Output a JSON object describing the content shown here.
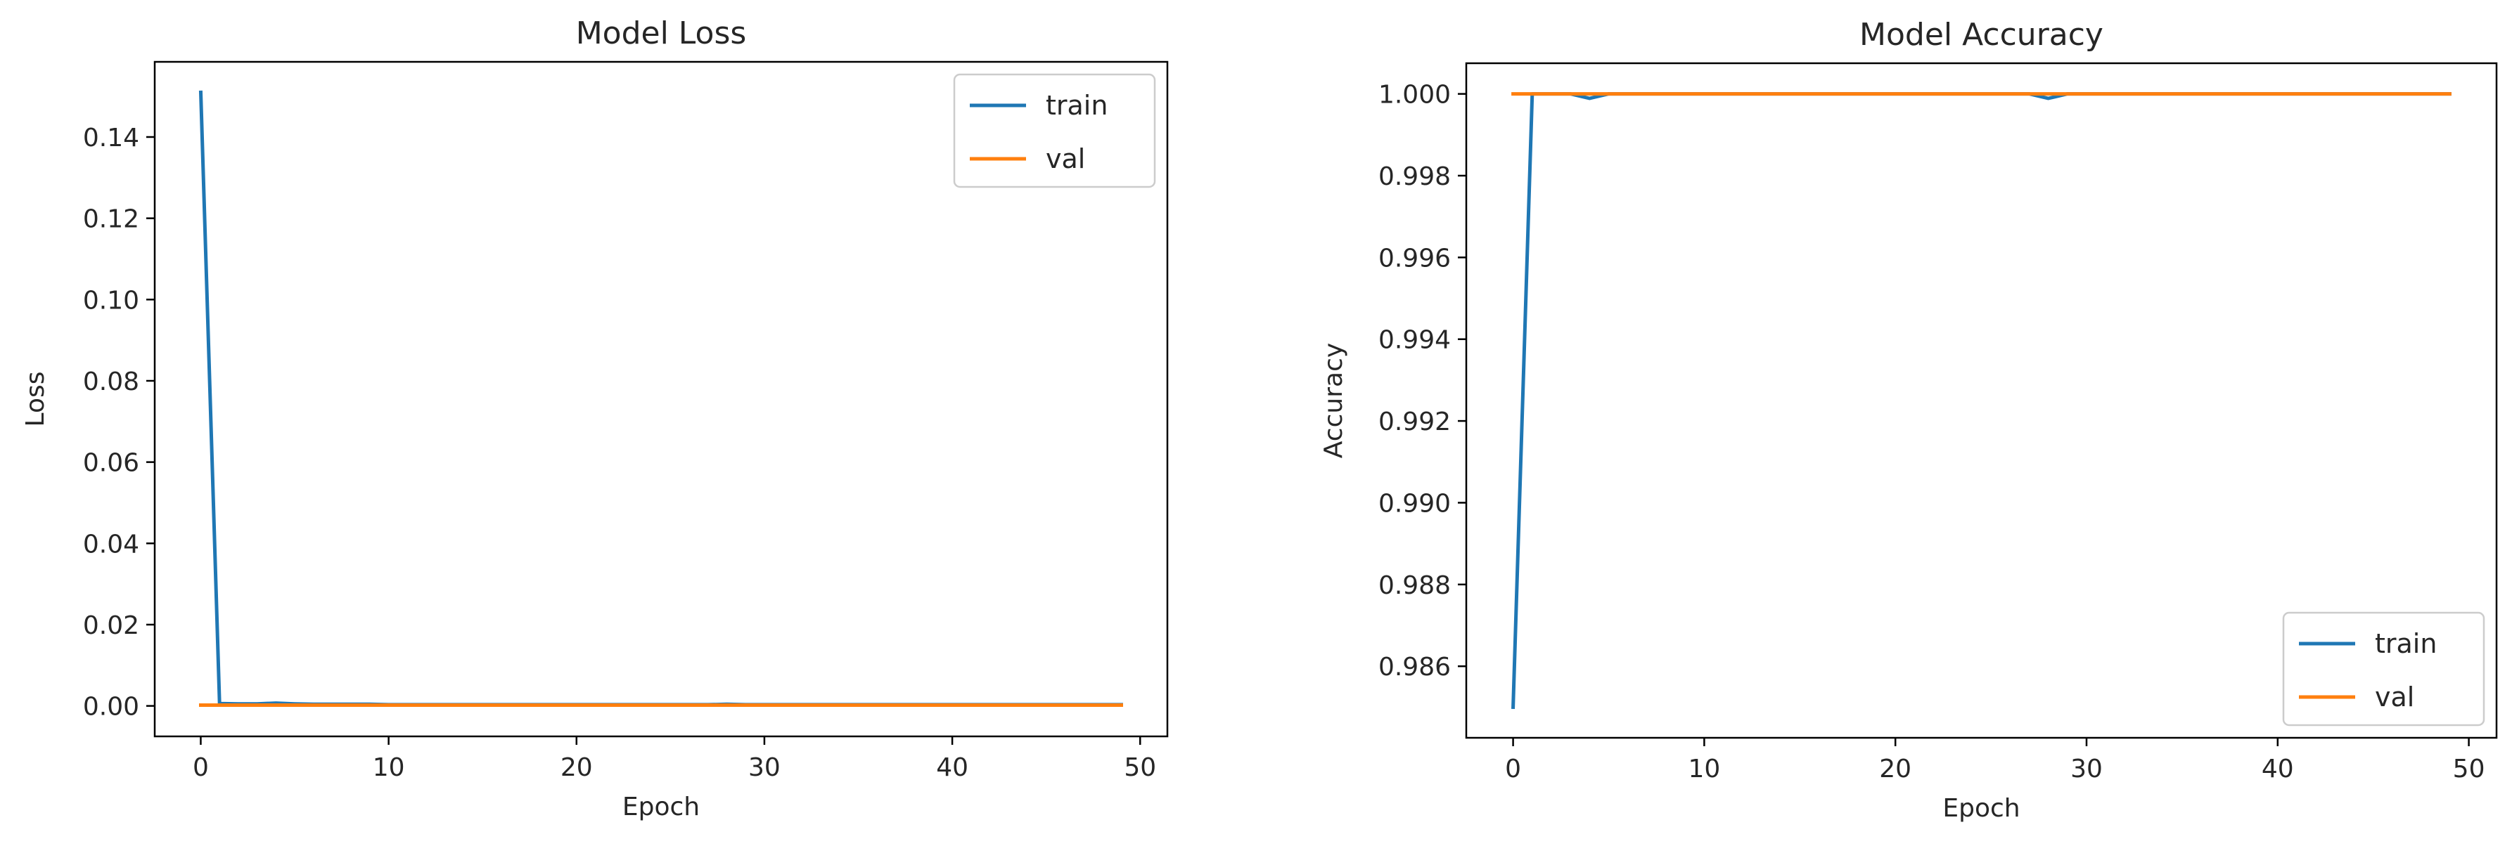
{
  "chart_data": [
    {
      "type": "line",
      "title": "Model Loss",
      "xlabel": "Epoch",
      "ylabel": "Loss",
      "xlim": [
        -2.45,
        51.45
      ],
      "ylim": [
        -0.0075,
        0.1585
      ],
      "xticks": [
        0,
        10,
        20,
        30,
        40,
        50
      ],
      "yticks": [
        0.0,
        0.02,
        0.04,
        0.06,
        0.08,
        0.1,
        0.12,
        0.14
      ],
      "ytick_labels": [
        "0.00",
        "0.02",
        "0.04",
        "0.06",
        "0.08",
        "0.10",
        "0.12",
        "0.14"
      ],
      "legend_position": "upper right",
      "series": [
        {
          "name": "train",
          "color": "#1f77b4",
          "x": [
            0,
            1,
            2,
            3,
            4,
            5,
            6,
            7,
            8,
            9,
            10,
            11,
            12,
            13,
            14,
            15,
            16,
            17,
            18,
            19,
            20,
            21,
            22,
            23,
            24,
            25,
            26,
            27,
            28,
            29,
            30,
            31,
            32,
            33,
            34,
            35,
            36,
            37,
            38,
            39,
            40,
            41,
            42,
            43,
            44,
            45,
            46,
            47,
            48,
            49
          ],
          "values": [
            0.151,
            0.0006,
            0.0005,
            0.0005,
            0.0007,
            0.0005,
            0.0004,
            0.0004,
            0.0004,
            0.0004,
            0.0003,
            0.0003,
            0.0003,
            0.0003,
            0.0003,
            0.0003,
            0.0003,
            0.0003,
            0.0003,
            0.0003,
            0.0003,
            0.0003,
            0.0003,
            0.0003,
            0.0003,
            0.0003,
            0.0003,
            0.0003,
            0.0004,
            0.0003,
            0.0003,
            0.0003,
            0.0003,
            0.0003,
            0.0003,
            0.0003,
            0.0003,
            0.0003,
            0.0003,
            0.0003,
            0.0003,
            0.0003,
            0.0003,
            0.0003,
            0.0003,
            0.0003,
            0.0003,
            0.0003,
            0.0003,
            0.0003
          ]
        },
        {
          "name": "val",
          "color": "#ff7f0e",
          "x": [
            0,
            1,
            2,
            3,
            4,
            5,
            6,
            7,
            8,
            9,
            10,
            11,
            12,
            13,
            14,
            15,
            16,
            17,
            18,
            19,
            20,
            21,
            22,
            23,
            24,
            25,
            26,
            27,
            28,
            29,
            30,
            31,
            32,
            33,
            34,
            35,
            36,
            37,
            38,
            39,
            40,
            41,
            42,
            43,
            44,
            45,
            46,
            47,
            48,
            49
          ],
          "values": [
            0.0002,
            0.0002,
            0.0002,
            0.0002,
            0.0002,
            0.0002,
            0.0002,
            0.0002,
            0.0002,
            0.0002,
            0.0002,
            0.0002,
            0.0002,
            0.0002,
            0.0002,
            0.0002,
            0.0002,
            0.0002,
            0.0002,
            0.0002,
            0.0002,
            0.0002,
            0.0002,
            0.0002,
            0.0002,
            0.0002,
            0.0002,
            0.0002,
            0.0002,
            0.0002,
            0.0002,
            0.0002,
            0.0002,
            0.0002,
            0.0002,
            0.0002,
            0.0002,
            0.0002,
            0.0002,
            0.0002,
            0.0002,
            0.0002,
            0.0002,
            0.0002,
            0.0002,
            0.0002,
            0.0002,
            0.0002,
            0.0002,
            0.0002
          ]
        }
      ]
    },
    {
      "type": "line",
      "title": "Model Accuracy",
      "xlabel": "Epoch",
      "ylabel": "Accuracy",
      "xlim": [
        -2.45,
        51.45
      ],
      "ylim": [
        0.98425,
        1.00075
      ],
      "xticks": [
        0,
        10,
        20,
        30,
        40,
        50
      ],
      "yticks": [
        0.986,
        0.988,
        0.99,
        0.992,
        0.994,
        0.996,
        0.998,
        1.0
      ],
      "ytick_labels": [
        "0.986",
        "0.988",
        "0.990",
        "0.992",
        "0.994",
        "0.996",
        "0.998",
        "1.000"
      ],
      "legend_position": "lower right",
      "series": [
        {
          "name": "train",
          "color": "#1f77b4",
          "x": [
            0,
            1,
            2,
            3,
            4,
            5,
            6,
            7,
            8,
            9,
            10,
            11,
            12,
            13,
            14,
            15,
            16,
            17,
            18,
            19,
            20,
            21,
            22,
            23,
            24,
            25,
            26,
            27,
            28,
            29,
            30,
            31,
            32,
            33,
            34,
            35,
            36,
            37,
            38,
            39,
            40,
            41,
            42,
            43,
            44,
            45,
            46,
            47,
            48,
            49
          ],
          "values": [
            0.985,
            1.0,
            1.0,
            1.0,
            0.99989,
            1.0,
            1.0,
            1.0,
            1.0,
            1.0,
            1.0,
            1.0,
            1.0,
            1.0,
            1.0,
            1.0,
            1.0,
            1.0,
            1.0,
            1.0,
            1.0,
            1.0,
            1.0,
            1.0,
            1.0,
            1.0,
            1.0,
            1.0,
            0.99989,
            1.0,
            1.0,
            1.0,
            1.0,
            1.0,
            1.0,
            1.0,
            1.0,
            1.0,
            1.0,
            1.0,
            1.0,
            1.0,
            1.0,
            1.0,
            1.0,
            1.0,
            1.0,
            1.0,
            1.0,
            1.0
          ]
        },
        {
          "name": "val",
          "color": "#ff7f0e",
          "x": [
            0,
            1,
            2,
            3,
            4,
            5,
            6,
            7,
            8,
            9,
            10,
            11,
            12,
            13,
            14,
            15,
            16,
            17,
            18,
            19,
            20,
            21,
            22,
            23,
            24,
            25,
            26,
            27,
            28,
            29,
            30,
            31,
            32,
            33,
            34,
            35,
            36,
            37,
            38,
            39,
            40,
            41,
            42,
            43,
            44,
            45,
            46,
            47,
            48,
            49
          ],
          "values": [
            1.0,
            1.0,
            1.0,
            1.0,
            1.0,
            1.0,
            1.0,
            1.0,
            1.0,
            1.0,
            1.0,
            1.0,
            1.0,
            1.0,
            1.0,
            1.0,
            1.0,
            1.0,
            1.0,
            1.0,
            1.0,
            1.0,
            1.0,
            1.0,
            1.0,
            1.0,
            1.0,
            1.0,
            1.0,
            1.0,
            1.0,
            1.0,
            1.0,
            1.0,
            1.0,
            1.0,
            1.0,
            1.0,
            1.0,
            1.0,
            1.0,
            1.0,
            1.0,
            1.0,
            1.0,
            1.0,
            1.0,
            1.0,
            1.0,
            1.0
          ]
        }
      ]
    }
  ]
}
